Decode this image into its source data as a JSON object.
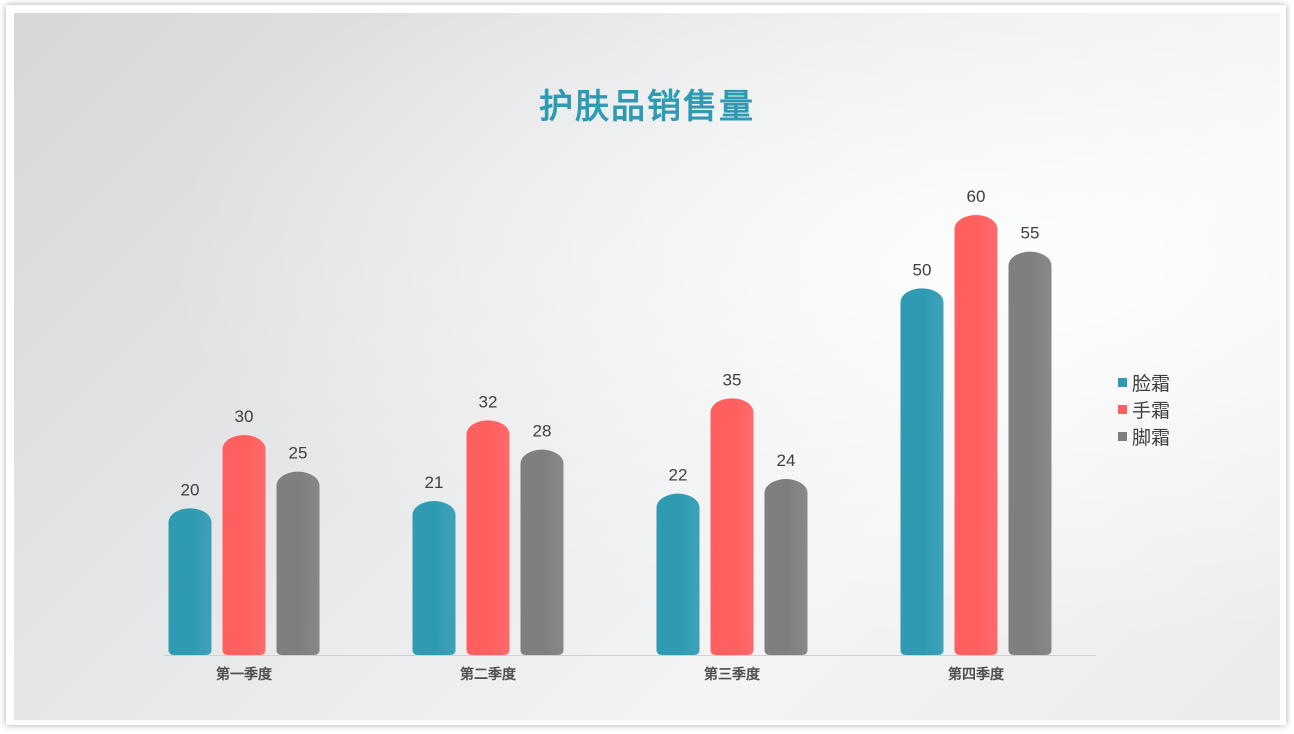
{
  "slide": {
    "title": "护肤品销售量",
    "title_color": "#2E9BB3"
  },
  "chart_data": {
    "type": "bar",
    "title": "护肤品销售量",
    "categories": [
      "第一季度",
      "第二季度",
      "第三季度",
      "第四季度"
    ],
    "series": [
      {
        "name": "脸霜",
        "color": "#2E9BB3",
        "values": [
          20,
          21,
          22,
          50
        ]
      },
      {
        "name": "手霜",
        "color": "#FF5F5F",
        "values": [
          30,
          32,
          35,
          60
        ]
      },
      {
        "name": "脚霜",
        "color": "#7F7F7F",
        "values": [
          25,
          28,
          24,
          55
        ]
      }
    ],
    "xlabel": "",
    "ylabel": "",
    "ylim": [
      0,
      60
    ],
    "grid": false,
    "data_labels": true,
    "legend": "right"
  }
}
